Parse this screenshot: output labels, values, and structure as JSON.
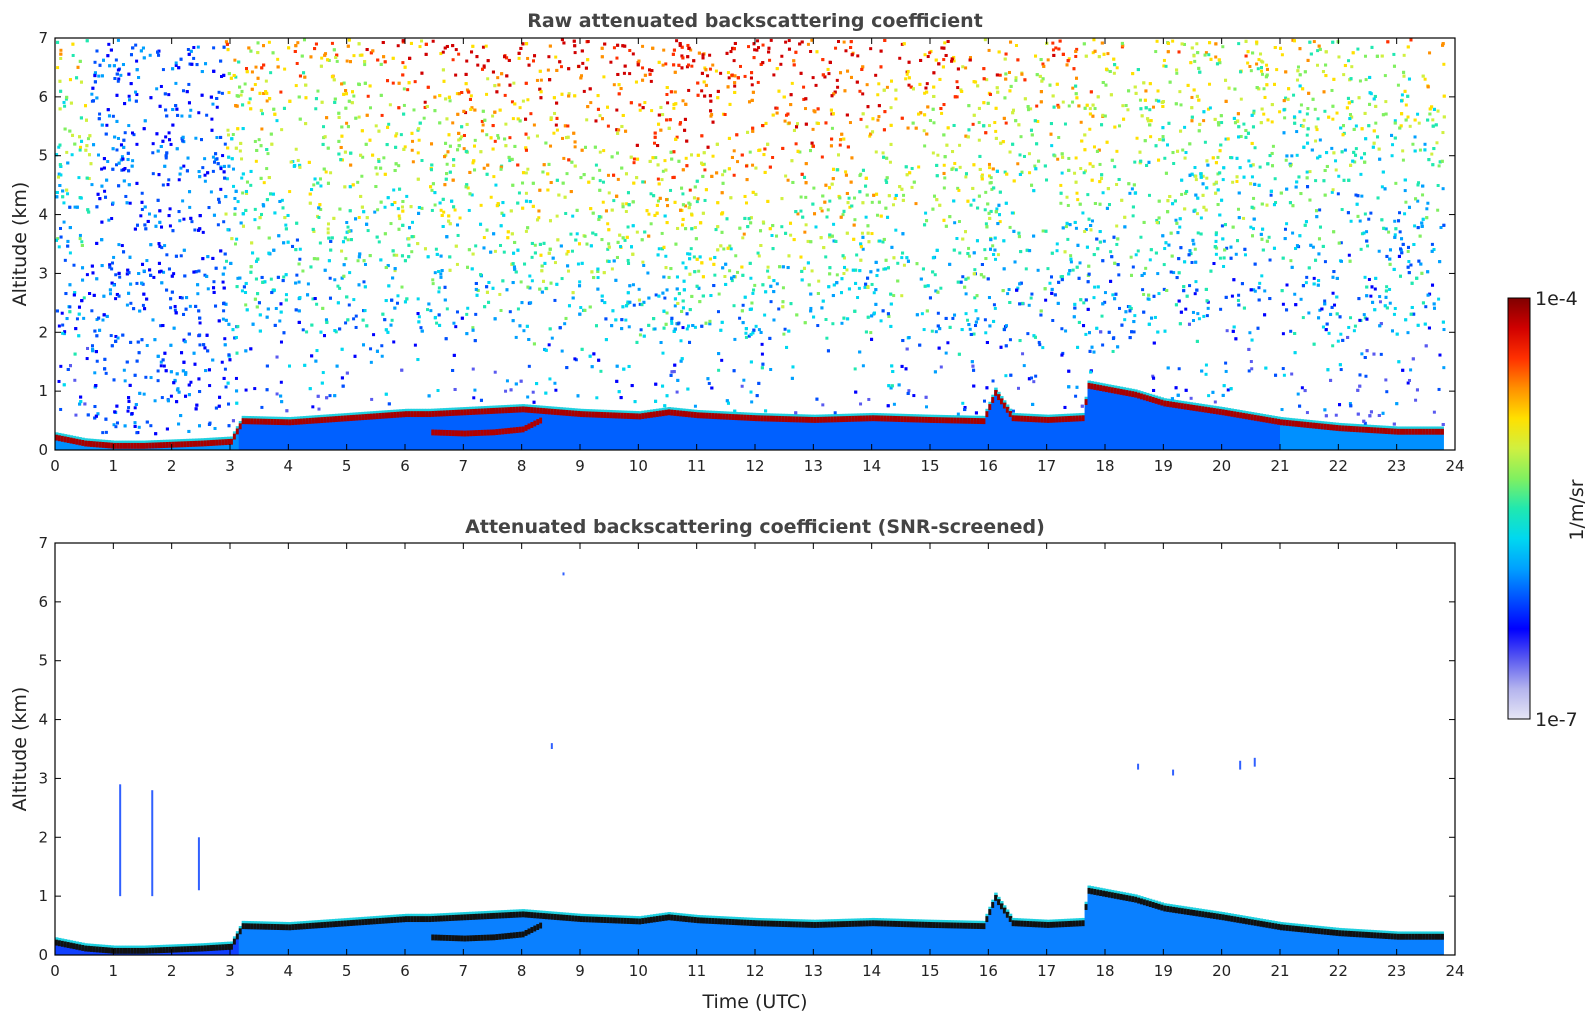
{
  "chart_data": [
    {
      "type": "heatmap",
      "title": "Raw attenuated backscattering coefficient",
      "xlabel": "",
      "ylabel": "Altitude (km)",
      "xlim": [
        0,
        24
      ],
      "ylim": [
        0,
        7
      ],
      "x_ticks": [
        "0",
        "1",
        "2",
        "3",
        "4",
        "5",
        "6",
        "7",
        "8",
        "9",
        "10",
        "11",
        "12",
        "13",
        "14",
        "15",
        "16",
        "17",
        "18",
        "19",
        "20",
        "21",
        "22",
        "23",
        "24"
      ],
      "y_ticks": [
        "0",
        "1",
        "2",
        "3",
        "4",
        "5",
        "6",
        "7"
      ],
      "data_end_time": 23.8,
      "cloud_base_km": [
        [
          0.0,
          0.22
        ],
        [
          0.5,
          0.12
        ],
        [
          1.0,
          0.08
        ],
        [
          1.5,
          0.08
        ],
        [
          2.0,
          0.1
        ],
        [
          2.5,
          0.12
        ],
        [
          3.0,
          0.15
        ],
        [
          3.2,
          0.5
        ],
        [
          4.0,
          0.48
        ],
        [
          5.0,
          0.55
        ],
        [
          6.0,
          0.62
        ],
        [
          6.4,
          0.62
        ],
        [
          7.0,
          0.65
        ],
        [
          8.0,
          0.7
        ],
        [
          9.0,
          0.62
        ],
        [
          10.0,
          0.58
        ],
        [
          10.5,
          0.65
        ],
        [
          11.0,
          0.6
        ],
        [
          12.0,
          0.55
        ],
        [
          13.0,
          0.52
        ],
        [
          14.0,
          0.55
        ],
        [
          15.0,
          0.52
        ],
        [
          15.9,
          0.5
        ],
        [
          16.1,
          0.98
        ],
        [
          16.4,
          0.55
        ],
        [
          17.0,
          0.52
        ],
        [
          17.6,
          0.55
        ],
        [
          17.7,
          1.1
        ],
        [
          18.5,
          0.95
        ],
        [
          19.0,
          0.8
        ],
        [
          20.0,
          0.65
        ],
        [
          21.0,
          0.48
        ],
        [
          22.0,
          0.38
        ],
        [
          23.0,
          0.32
        ],
        [
          23.8,
          0.32
        ]
      ],
      "lower_layer_km": [
        [
          6.4,
          0.3
        ],
        [
          7.0,
          0.28
        ],
        [
          7.5,
          0.3
        ],
        [
          8.0,
          0.35
        ],
        [
          8.3,
          0.5
        ]
      ],
      "clear_gap_hours": [
        [
          0.6,
          2.9
        ]
      ],
      "noise_background": "high noise aloft, strongest 7-16 UTC above 3 km"
    },
    {
      "type": "heatmap",
      "title": "Attenuated backscattering coefficient (SNR-screened)",
      "xlabel": "Time (UTC)",
      "ylabel": "Altitude (km)",
      "xlim": [
        0,
        24
      ],
      "ylim": [
        0,
        7
      ],
      "x_ticks": [
        "0",
        "1",
        "2",
        "3",
        "4",
        "5",
        "6",
        "7",
        "8",
        "9",
        "10",
        "11",
        "12",
        "13",
        "14",
        "15",
        "16",
        "17",
        "18",
        "19",
        "20",
        "21",
        "22",
        "23",
        "24"
      ],
      "y_ticks": [
        "0",
        "1",
        "2",
        "3",
        "4",
        "5",
        "6",
        "7"
      ],
      "data_end_time": 23.8,
      "isolated_features": [
        {
          "time": 1.1,
          "alt_bottom": 1.0,
          "alt_top": 2.9
        },
        {
          "time": 1.65,
          "alt_bottom": 1.0,
          "alt_top": 2.8
        },
        {
          "time": 2.45,
          "alt_bottom": 1.1,
          "alt_top": 2.0
        },
        {
          "time": 8.5,
          "alt_bottom": 3.5,
          "alt_top": 3.6
        },
        {
          "time": 8.7,
          "alt_bottom": 6.45,
          "alt_top": 6.5
        },
        {
          "time": 18.55,
          "alt_bottom": 3.15,
          "alt_top": 3.25
        },
        {
          "time": 19.15,
          "alt_bottom": 3.05,
          "alt_top": 3.15
        },
        {
          "time": 20.3,
          "alt_bottom": 3.15,
          "alt_top": 3.3
        },
        {
          "time": 20.55,
          "alt_bottom": 3.2,
          "alt_top": 3.35
        }
      ]
    }
  ],
  "colorbar": {
    "label": "1/m/sr",
    "max_label": "1e-4",
    "min_label": "1e-7",
    "scale": "log",
    "range": [
      1e-07,
      0.0001
    ],
    "colormap": [
      "#e6e6f5",
      "#b4b4ee",
      "#5a5af0",
      "#0000ff",
      "#0050ff",
      "#00a0ff",
      "#00d8f0",
      "#20e8b0",
      "#80f060",
      "#d0f040",
      "#ffe000",
      "#ff9000",
      "#ff3000",
      "#d00000",
      "#800000"
    ]
  }
}
